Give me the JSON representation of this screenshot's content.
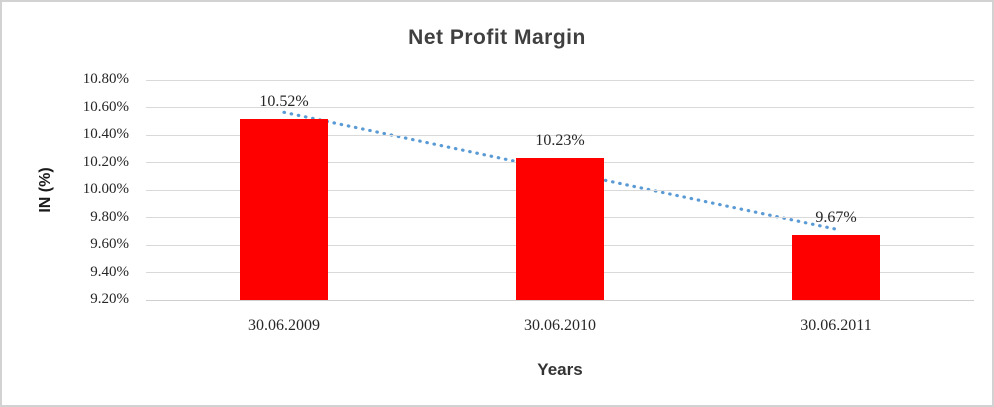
{
  "chart_data": {
    "type": "bar",
    "title": "Net Profit Margin",
    "xlabel": "Years",
    "ylabel": "IN (%)",
    "categories": [
      "30.06.2009",
      "30.06.2010",
      "30.06.2011"
    ],
    "values": [
      10.52,
      10.23,
      9.67
    ],
    "data_labels": [
      "10.52%",
      "10.23%",
      "9.67%"
    ],
    "yticks": [
      "10.80%",
      "10.60%",
      "10.40%",
      "10.20%",
      "10.00%",
      "9.80%",
      "9.60%",
      "9.40%",
      "9.20%"
    ],
    "ylim": [
      9.2,
      10.8
    ],
    "ytick_step": 0.2,
    "grid": true,
    "legend": "none",
    "bar_color": "#ff0000",
    "gridline_color": "#d9d9d9",
    "trendline": {
      "type": "linear",
      "style": "dotted",
      "color": "#5b9bd5"
    }
  }
}
